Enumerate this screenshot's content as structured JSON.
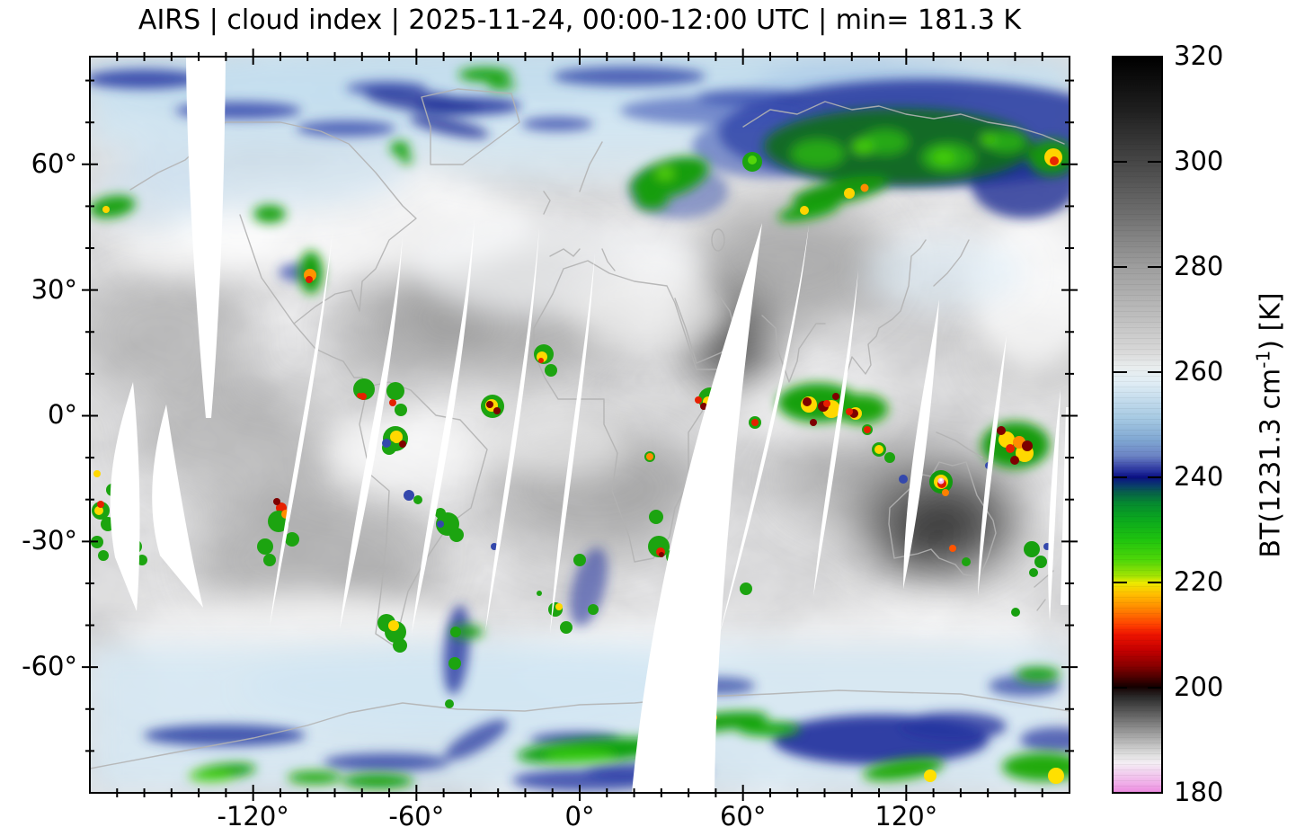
{
  "title": "AIRS | cloud index | 2025-11-24, 00:00-12:00 UTC | min= 181.3 K",
  "axes": {
    "lat_labels": [
      "60°",
      "30°",
      "0°",
      "-30°",
      "-60°"
    ],
    "lon_labels": [
      "-120°",
      "-60°",
      "0°",
      "60°",
      "120°"
    ]
  },
  "colorbar": {
    "label_prefix": "BT(1231.3 cm",
    "label_sup": "-1",
    "label_suffix": ") [K]",
    "tick_labels": [
      "320",
      "300",
      "280",
      "260",
      "240",
      "220",
      "200",
      "180"
    ]
  },
  "chart_data": {
    "type": "heatmap",
    "title": "AIRS | cloud index | 2025-11-24, 00:00-12:00 UTC | min= 181.3 K",
    "instrument": "AIRS",
    "product": "cloud index",
    "date": "2025-11-24",
    "time_utc": "00:00-12:00",
    "min_brightness_temperature_K": 181.3,
    "projection": "global equirectangular latitude-longitude map",
    "grid": false,
    "x_axis": {
      "name": "longitude_deg",
      "range": [
        -180,
        180
      ],
      "major_ticks": [
        -120,
        -60,
        0,
        60,
        120
      ],
      "minor_tick_step": 10
    },
    "y_axis": {
      "name": "latitude_deg",
      "range": [
        -90,
        85.7
      ],
      "major_ticks": [
        60,
        30,
        0,
        -30,
        -60
      ],
      "minor_tick_step": 10
    },
    "colorbar": {
      "label": "BT(1231.3 cm-1) [K]",
      "units": "K",
      "range": [
        180,
        320
      ],
      "orientation": "vertical-right",
      "tick_values": [
        320,
        300,
        280,
        260,
        240,
        220,
        200,
        180
      ],
      "stops": [
        {
          "value": 320,
          "color": "#000000"
        },
        {
          "value": 310,
          "color": "#1f1f1f"
        },
        {
          "value": 300,
          "color": "#474747"
        },
        {
          "value": 290,
          "color": "#6f6f6f"
        },
        {
          "value": 280,
          "color": "#9e9e9e"
        },
        {
          "value": 270,
          "color": "#c0c0c0"
        },
        {
          "value": 264,
          "color": "#d8d8d8"
        },
        {
          "value": 261,
          "color": "#e9edee"
        },
        {
          "value": 258,
          "color": "#e0edf5"
        },
        {
          "value": 255,
          "color": "#c6dded"
        },
        {
          "value": 251,
          "color": "#a4c8e2"
        },
        {
          "value": 247,
          "color": "#7fa6d2"
        },
        {
          "value": 244,
          "color": "#6b82c4"
        },
        {
          "value": 242,
          "color": "#3a46a8"
        },
        {
          "value": 241,
          "color": "#232e9c"
        },
        {
          "value": 240,
          "color": "#0a0f82"
        },
        {
          "value": 238.5,
          "color": "#0a3a6e"
        },
        {
          "value": 237,
          "color": "#076248"
        },
        {
          "value": 235,
          "color": "#058a30"
        },
        {
          "value": 232,
          "color": "#0aa81e"
        },
        {
          "value": 228,
          "color": "#1fc40e"
        },
        {
          "value": 224,
          "color": "#52d808"
        },
        {
          "value": 221,
          "color": "#a8e403"
        },
        {
          "value": 220,
          "color": "#eaec00"
        },
        {
          "value": 218,
          "color": "#ffc400"
        },
        {
          "value": 215,
          "color": "#ff8800"
        },
        {
          "value": 212,
          "color": "#ff4400"
        },
        {
          "value": 210,
          "color": "#ee1400"
        },
        {
          "value": 207,
          "color": "#c40000"
        },
        {
          "value": 204,
          "color": "#880000"
        },
        {
          "value": 202,
          "color": "#500000"
        },
        {
          "value": 200,
          "color": "#140000"
        },
        {
          "value": 198,
          "color": "#2c2c2c"
        },
        {
          "value": 195,
          "color": "#5e5e5e"
        },
        {
          "value": 192,
          "color": "#909090"
        },
        {
          "value": 189,
          "color": "#c0c0c0"
        },
        {
          "value": 187,
          "color": "#e0e0e0"
        },
        {
          "value": 185.5,
          "color": "#f4eef4"
        },
        {
          "value": 183.5,
          "color": "#f2cdef"
        },
        {
          "value": 181.5,
          "color": "#f0abe8"
        },
        {
          "value": 180,
          "color": "#ec8ce0"
        }
      ]
    },
    "notes": [
      "grayscale shades encode warm scene brightness temperatures (320-260 K)",
      "blue-green-yellow-red-black-gray-pink sequence encodes progressively colder cloud tops (260-180 K)",
      "white slanted slivers are gaps between successive polar-orbit swaths",
      "deep blue/green mass over Siberia (top right), tropical convection specks along the ITCZ, dark (hot) interior over Australia, pink speck near 95E 25S marks the 181.3 K minimum"
    ]
  }
}
